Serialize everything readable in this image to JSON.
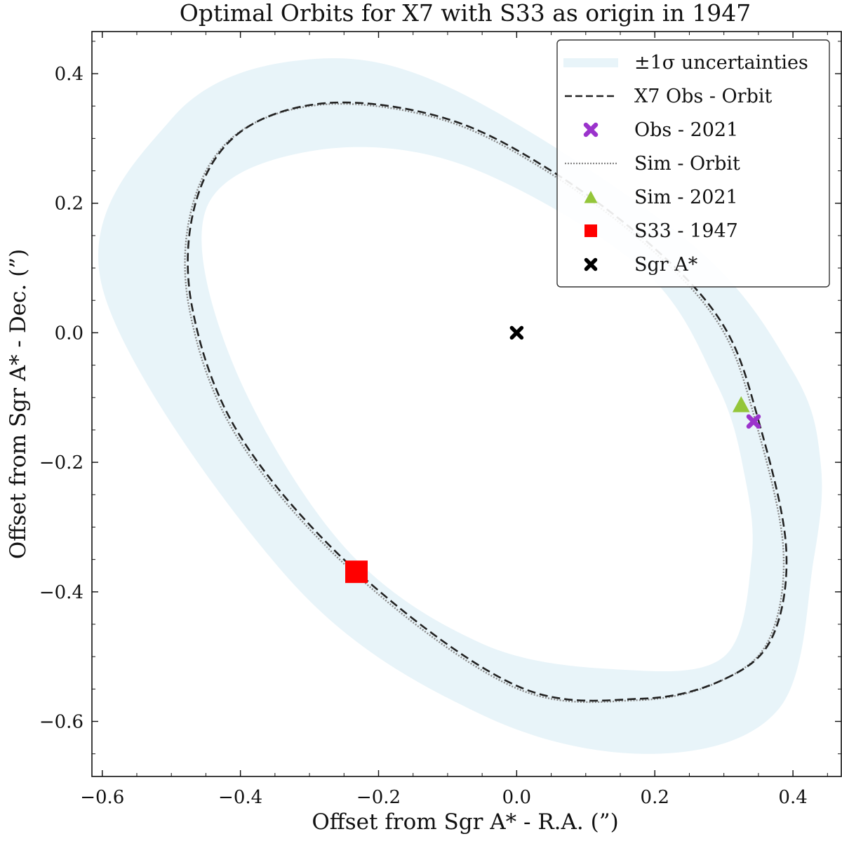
{
  "chart_data": {
    "type": "scatter",
    "title": "Optimal Orbits for X7 with S33 as origin in 1947",
    "xlabel": "Offset from Sgr A* - R.A. (”)",
    "ylabel": "Offset from Sgr A* - Dec. (”)",
    "xlim": [
      -0.615,
      0.47
    ],
    "ylim": [
      -0.685,
      0.465
    ],
    "xticks": [
      -0.6,
      -0.4,
      -0.2,
      0.0,
      0.2,
      0.4
    ],
    "yticks": [
      -0.6,
      -0.4,
      -0.2,
      0.0,
      0.2,
      0.4
    ],
    "xtick_labels": [
      "−0.6",
      "−0.4",
      "−0.2",
      "0.0",
      "0.2",
      "0.4"
    ],
    "ytick_labels": [
      "−0.6",
      "−0.4",
      "−0.2",
      "0.0",
      "0.2",
      "0.4"
    ],
    "legend_position": "upper-right",
    "orbit": {
      "start": [
        0.35,
        -0.135
      ],
      "points": [
        [
          0.39,
          -0.33
        ],
        [
          0.37,
          -0.47
        ],
        [
          0.3,
          -0.535
        ],
        [
          0.18,
          -0.565
        ],
        [
          0.0,
          -0.545
        ],
        [
          -0.23,
          -0.37
        ],
        [
          -0.4,
          -0.16
        ],
        [
          -0.47,
          0.04
        ],
        [
          -0.465,
          0.2
        ],
        [
          -0.4,
          0.31
        ],
        [
          -0.27,
          0.355
        ],
        [
          -0.1,
          0.33
        ],
        [
          0.05,
          0.25
        ],
        [
          0.2,
          0.13
        ],
        [
          0.3,
          0.01
        ]
      ]
    },
    "uncertainty_band": {
      "outer": [
        [
          0.43,
          -0.35
        ],
        [
          0.38,
          -0.58
        ],
        [
          0.2,
          -0.65
        ],
        [
          -0.05,
          -0.59
        ],
        [
          -0.33,
          -0.38
        ],
        [
          -0.6,
          0.07
        ],
        [
          -0.5,
          0.33
        ],
        [
          -0.32,
          0.42
        ],
        [
          -0.1,
          0.38
        ],
        [
          0.25,
          0.14
        ],
        [
          0.4,
          -0.06
        ],
        [
          0.44,
          -0.2
        ]
      ],
      "inner": [
        [
          0.34,
          -0.35
        ],
        [
          0.3,
          -0.5
        ],
        [
          0.15,
          -0.52
        ],
        [
          -0.05,
          -0.48
        ],
        [
          -0.25,
          -0.33
        ],
        [
          -0.41,
          -0.05
        ],
        [
          -0.45,
          0.19
        ],
        [
          -0.3,
          0.28
        ],
        [
          -0.08,
          0.26
        ],
        [
          0.18,
          0.1
        ],
        [
          0.29,
          -0.08
        ],
        [
          0.33,
          -0.22
        ]
      ]
    },
    "markers": {
      "obs_2021": {
        "x": 0.343,
        "y": -0.137,
        "color": "#9b33cc"
      },
      "sim_2021": {
        "x": 0.325,
        "y": -0.112,
        "color": "#94c63a"
      },
      "s33_1947": {
        "x": -0.232,
        "y": -0.369,
        "color": "#ff0000"
      },
      "sgr_a": {
        "x": 0.0,
        "y": 0.0,
        "color": "#000000"
      }
    },
    "colors": {
      "band": "#e8f4f9",
      "obs_orbit": "#222222",
      "sim_orbit": "#888888"
    },
    "legend": [
      {
        "key": "band",
        "label": "±1σ uncertainties"
      },
      {
        "key": "obs_orbit",
        "label": "X7 Obs - Orbit"
      },
      {
        "key": "obs_2021",
        "label": "Obs - 2021"
      },
      {
        "key": "sim_orbit",
        "label": "Sim - Orbit"
      },
      {
        "key": "sim_2021",
        "label": "Sim - 2021"
      },
      {
        "key": "s33_1947",
        "label": "S33 - 1947"
      },
      {
        "key": "sgr_a",
        "label": "Sgr A*"
      }
    ]
  }
}
